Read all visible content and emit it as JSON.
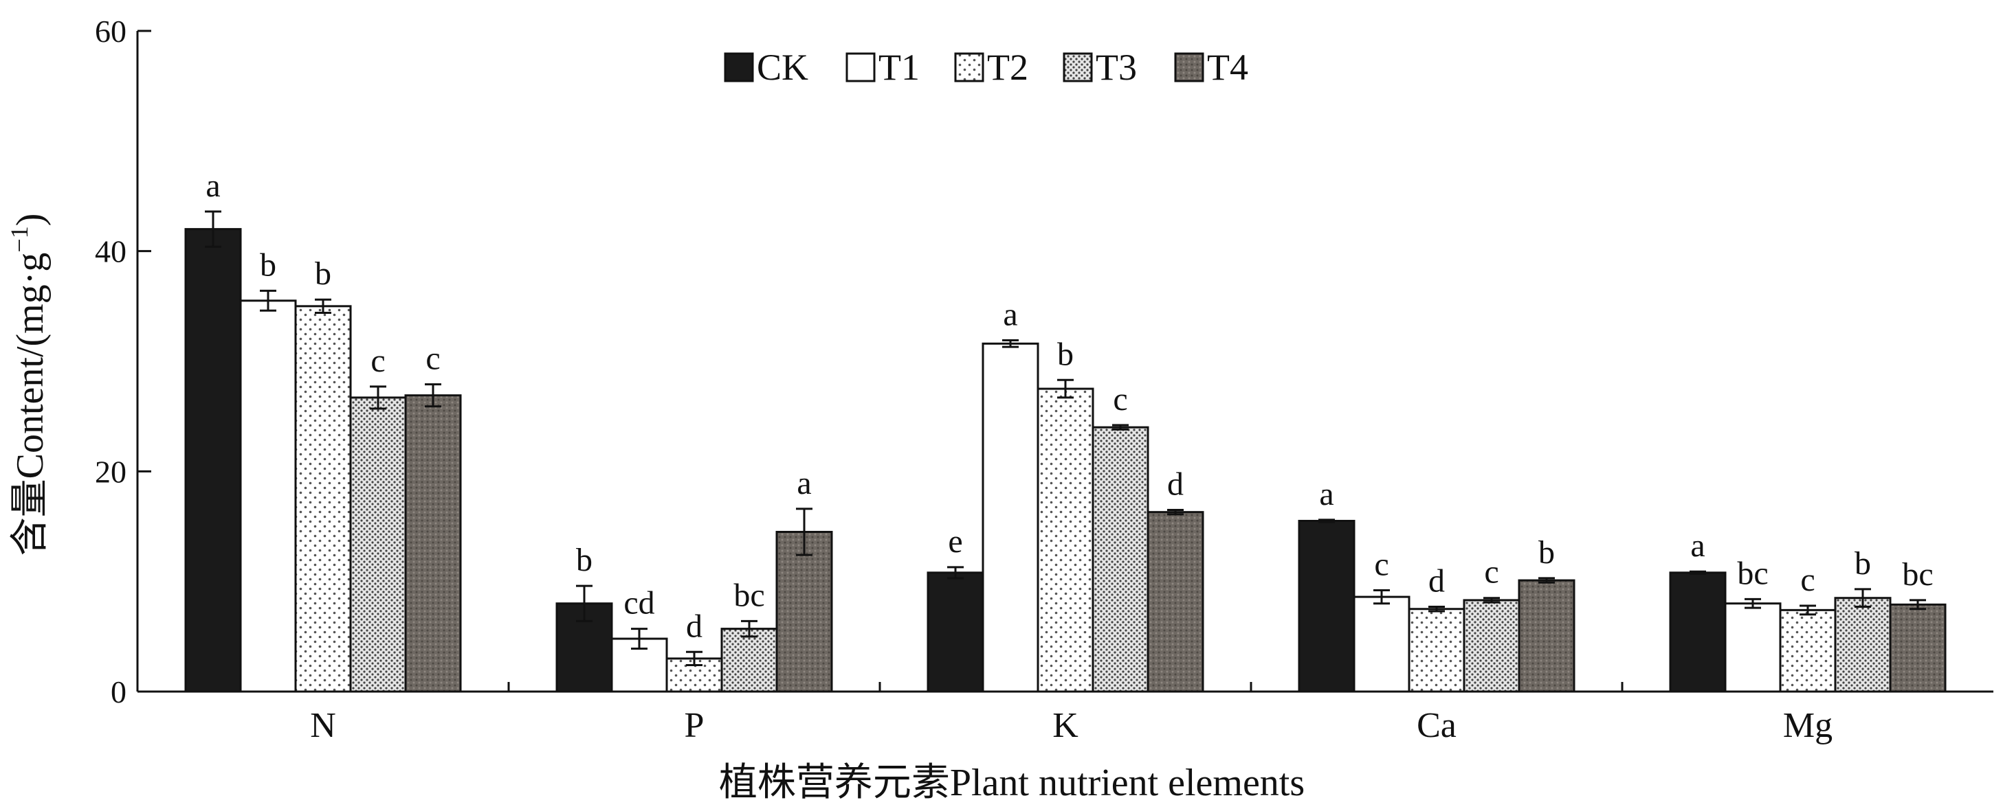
{
  "chart_data": {
    "type": "bar",
    "title": "",
    "xlabel": "植株营养元素Plant nutrient elements",
    "ylabel_prefix": "含量Content/(mg·g",
    "ylabel_sup": "−1",
    "ylabel_suffix": ")",
    "ylim": [
      0,
      60
    ],
    "yticks": [
      0,
      20,
      40,
      60
    ],
    "ytick_labels": [
      "0",
      "20",
      "40",
      "60"
    ],
    "grid": false,
    "legend_position": "top-center",
    "categories": [
      "N",
      "P",
      "K",
      "Ca",
      "Mg"
    ],
    "series": [
      {
        "name": "CK",
        "values": [
          42.0,
          8.0,
          10.8,
          15.5,
          10.8
        ],
        "errors": [
          1.6,
          1.6,
          0.5,
          0.1,
          0.1
        ],
        "labels": [
          "a",
          "b",
          "e",
          "a",
          "a"
        ],
        "fill": "#1a1a1a",
        "pattern": "solid"
      },
      {
        "name": "T1",
        "values": [
          35.5,
          4.8,
          31.6,
          8.6,
          8.0
        ],
        "errors": [
          0.9,
          0.9,
          0.3,
          0.6,
          0.4
        ],
        "labels": [
          "b",
          "cd",
          "a",
          "c",
          "bc"
        ],
        "fill": "#ffffff",
        "pattern": "none"
      },
      {
        "name": "T2",
        "values": [
          35.0,
          3.0,
          27.5,
          7.5,
          7.4
        ],
        "errors": [
          0.6,
          0.6,
          0.8,
          0.2,
          0.4
        ],
        "labels": [
          "b",
          "d",
          "b",
          "d",
          "c"
        ],
        "fill": "#ffffff",
        "pattern": "dots"
      },
      {
        "name": "T3",
        "values": [
          26.7,
          5.7,
          24.0,
          8.3,
          8.5
        ],
        "errors": [
          1.0,
          0.7,
          0.2,
          0.2,
          0.8
        ],
        "labels": [
          "c",
          "bc",
          "c",
          "c",
          "b"
        ],
        "fill": "#c9c9c9",
        "pattern": "dense"
      },
      {
        "name": "T4",
        "values": [
          26.9,
          14.5,
          16.3,
          10.1,
          7.9
        ],
        "errors": [
          1.0,
          2.1,
          0.2,
          0.2,
          0.4
        ],
        "labels": [
          "c",
          "a",
          "d",
          "b",
          "bc"
        ],
        "fill": "#6e6862",
        "pattern": "texture"
      }
    ]
  }
}
